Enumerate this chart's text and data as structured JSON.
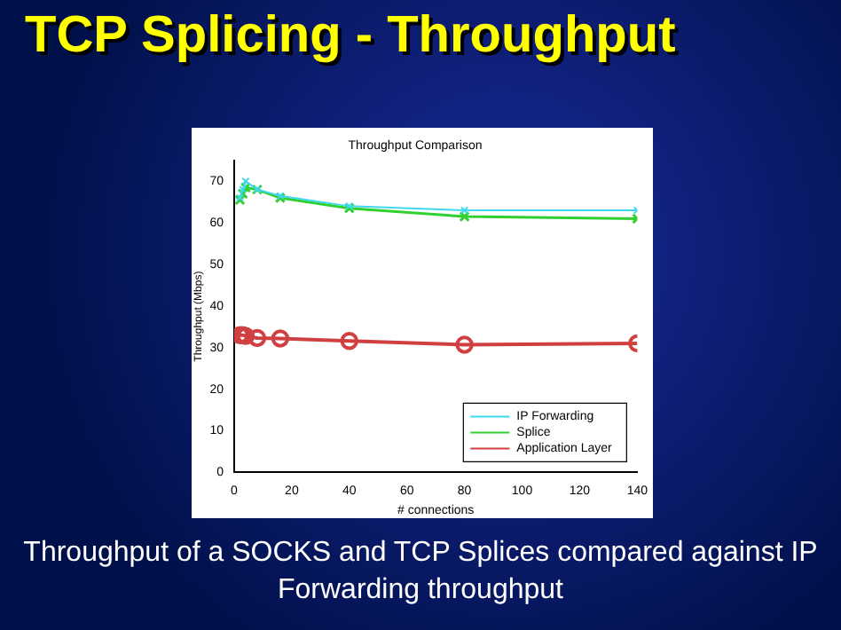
{
  "chart_data": {
    "type": "line",
    "title": "TCP Splicing - Throughput",
    "subtitle": "Throughput Comparison",
    "xlabel": "# connections",
    "ylabel": "Throughput (Mbps)",
    "x": [
      2,
      3,
      4,
      8,
      16,
      40,
      80,
      140
    ],
    "series": [
      {
        "name": "IP Forwarding",
        "color": "#40d8f0",
        "marker": "cross",
        "values": [
          66,
          68,
          70,
          68,
          66.5,
          64,
          63,
          63
        ]
      },
      {
        "name": "Splice",
        "color": "#30d030",
        "marker": "cross",
        "values": [
          65.5,
          67,
          68.5,
          68,
          66,
          63.5,
          61.5,
          61
        ]
      },
      {
        "name": "Application Layer",
        "color": "#d04040",
        "marker": "circle",
        "values": [
          33,
          33,
          32.8,
          32.3,
          32.2,
          31.6,
          30.7,
          31
        ]
      }
    ],
    "xlim": [
      0,
      140
    ],
    "xticks": [
      0,
      20,
      40,
      60,
      80,
      100,
      120,
      140
    ],
    "ylim": [
      0,
      75
    ],
    "yticks": [
      0,
      10,
      20,
      30,
      40,
      50,
      60,
      70
    ],
    "grid": false,
    "legend": "bottom right",
    "line_style": "solid",
    "annotations": [
      "Throughput of a SOCKS and TCP Splices compared against IP Forwarding throughput"
    ]
  }
}
